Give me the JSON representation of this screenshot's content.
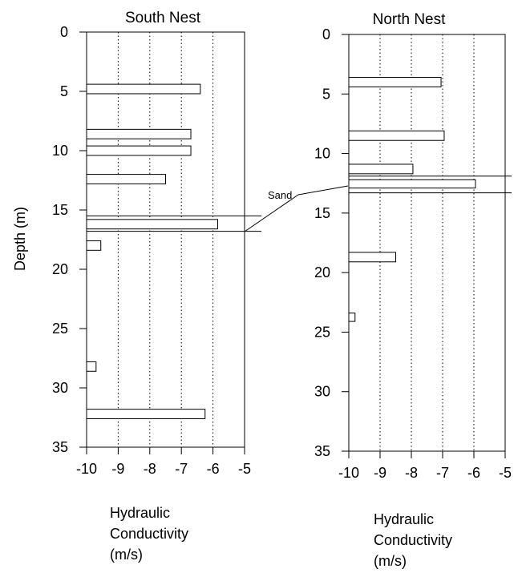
{
  "chart_data": [
    {
      "type": "bar",
      "orientation": "horizontal",
      "title": "South Nest",
      "xlabel": [
        "Hydraulic",
        "Conductivity",
        "(m/s)"
      ],
      "ylabel": "Depth (m)",
      "xlim": [
        -10,
        -5
      ],
      "ylim": [
        0,
        35
      ],
      "y_inverted": true,
      "x_ticks": [
        "-10",
        "-9",
        "-8",
        "-7",
        "-6",
        "-5"
      ],
      "y_ticks": [
        "0",
        "5",
        "10",
        "15",
        "20",
        "25",
        "30",
        "35"
      ],
      "grid": "vertical dotted",
      "bars": [
        {
          "depth_top": 4.4,
          "depth_bottom": 5.2,
          "value": -6.4
        },
        {
          "depth_top": 8.2,
          "depth_bottom": 9.0,
          "value": -6.7
        },
        {
          "depth_top": 9.6,
          "depth_bottom": 10.4,
          "value": -6.7
        },
        {
          "depth_top": 12.0,
          "depth_bottom": 12.8,
          "value": -7.5
        },
        {
          "depth_top": 15.8,
          "depth_bottom": 16.6,
          "value": -5.85
        },
        {
          "depth_top": 17.6,
          "depth_bottom": 18.4,
          "value": -9.55
        },
        {
          "depth_top": 27.8,
          "depth_bottom": 28.6,
          "value": -9.7
        },
        {
          "depth_top": 31.8,
          "depth_bottom": 32.6,
          "value": -6.25
        }
      ],
      "sand_layer": {
        "top": 15.5,
        "bottom": 16.8
      }
    },
    {
      "type": "bar",
      "orientation": "horizontal",
      "title": "North Nest",
      "xlabel": [
        "Hydraulic",
        "Conductivity",
        "(m/s)"
      ],
      "ylabel": "",
      "xlim": [
        -10,
        -5
      ],
      "ylim": [
        0,
        35
      ],
      "y_inverted": true,
      "x_ticks": [
        "-10",
        "-9",
        "-8",
        "-7",
        "-6",
        "-5"
      ],
      "y_ticks": [
        "0",
        "5",
        "10",
        "15",
        "20",
        "25",
        "30",
        "35"
      ],
      "grid": "vertical dotted",
      "bars": [
        {
          "depth_top": 3.6,
          "depth_bottom": 4.4,
          "value": -7.05
        },
        {
          "depth_top": 8.1,
          "depth_bottom": 8.9,
          "value": -6.95
        },
        {
          "depth_top": 10.9,
          "depth_bottom": 11.7,
          "value": -7.95
        },
        {
          "depth_top": 12.2,
          "depth_bottom": 12.9,
          "value": -5.95
        },
        {
          "depth_top": 18.3,
          "depth_bottom": 19.1,
          "value": -8.5
        },
        {
          "depth_top": 23.4,
          "depth_bottom": 24.1,
          "value": -9.8
        }
      ],
      "sand_layer": {
        "top": 11.9,
        "bottom": 13.3
      }
    }
  ],
  "annotation": {
    "text": "Sand"
  }
}
